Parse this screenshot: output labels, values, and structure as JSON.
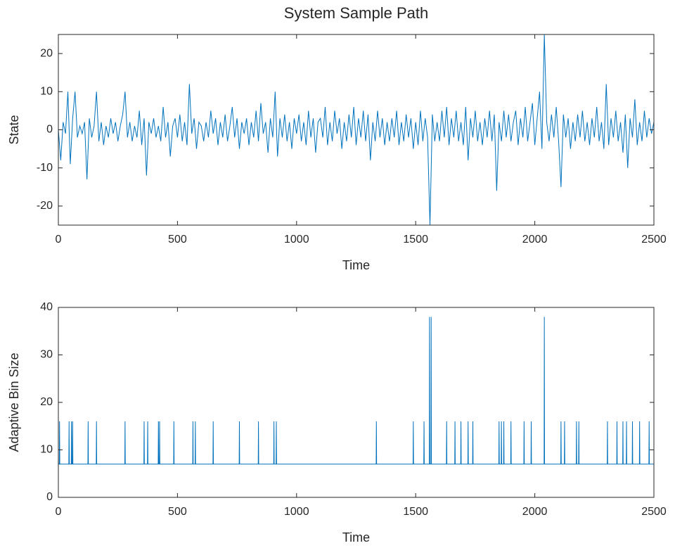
{
  "chart_data": [
    {
      "type": "line",
      "title": "System Sample Path",
      "xlabel": "Time",
      "ylabel": "State",
      "color": "#0072BD",
      "xlim": [
        0,
        2500
      ],
      "xticks": [
        0,
        500,
        1000,
        1500,
        2000,
        2500
      ],
      "ylim": [
        -25,
        25
      ],
      "yticks": [
        -20,
        -10,
        0,
        10,
        20
      ],
      "grid": false,
      "x": [
        0,
        10,
        20,
        30,
        40,
        50,
        60,
        70,
        80,
        90,
        100,
        110,
        120,
        130,
        140,
        150,
        160,
        170,
        180,
        190,
        200,
        210,
        220,
        230,
        240,
        250,
        260,
        270,
        280,
        290,
        300,
        310,
        320,
        330,
        340,
        350,
        360,
        370,
        380,
        390,
        400,
        410,
        420,
        430,
        440,
        450,
        460,
        470,
        480,
        490,
        500,
        510,
        520,
        530,
        540,
        550,
        560,
        570,
        580,
        590,
        600,
        610,
        620,
        630,
        640,
        650,
        660,
        670,
        680,
        690,
        700,
        710,
        720,
        730,
        740,
        750,
        760,
        770,
        780,
        790,
        800,
        810,
        820,
        830,
        840,
        850,
        860,
        870,
        880,
        890,
        900,
        910,
        920,
        930,
        940,
        950,
        960,
        970,
        980,
        990,
        1000,
        1010,
        1020,
        1030,
        1040,
        1050,
        1060,
        1070,
        1080,
        1090,
        1100,
        1110,
        1120,
        1130,
        1140,
        1150,
        1160,
        1170,
        1180,
        1190,
        1200,
        1210,
        1220,
        1230,
        1240,
        1250,
        1260,
        1270,
        1280,
        1290,
        1300,
        1310,
        1320,
        1330,
        1340,
        1350,
        1360,
        1370,
        1380,
        1390,
        1400,
        1410,
        1420,
        1430,
        1440,
        1450,
        1460,
        1470,
        1480,
        1490,
        1500,
        1510,
        1520,
        1530,
        1540,
        1550,
        1560,
        1570,
        1580,
        1590,
        1600,
        1610,
        1620,
        1630,
        1640,
        1650,
        1660,
        1670,
        1680,
        1690,
        1700,
        1710,
        1720,
        1730,
        1740,
        1750,
        1760,
        1770,
        1780,
        1790,
        1800,
        1810,
        1820,
        1830,
        1840,
        1850,
        1860,
        1870,
        1880,
        1890,
        1900,
        1910,
        1920,
        1930,
        1940,
        1950,
        1960,
        1970,
        1980,
        1990,
        2000,
        2010,
        2020,
        2030,
        2040,
        2050,
        2060,
        2070,
        2080,
        2090,
        2100,
        2110,
        2120,
        2130,
        2140,
        2150,
        2160,
        2170,
        2180,
        2190,
        2200,
        2210,
        2220,
        2230,
        2240,
        2250,
        2260,
        2270,
        2280,
        2290,
        2300,
        2310,
        2320,
        2330,
        2340,
        2350,
        2360,
        2370,
        2380,
        2390,
        2400,
        2410,
        2420,
        2430,
        2440,
        2450,
        2460,
        2470,
        2480,
        2490,
        2500
      ],
      "values": [
        0,
        -8,
        2,
        -1,
        10,
        -9,
        3,
        10,
        -2,
        1,
        -1,
        2,
        -13,
        3,
        -2,
        1,
        10,
        -3,
        2,
        -4,
        1,
        -2,
        3,
        -1,
        2,
        -3,
        1,
        4,
        10,
        -2,
        2,
        -3,
        1,
        -2,
        5,
        -4,
        3,
        -12,
        2,
        -1,
        3,
        -2,
        1,
        -3,
        6,
        -2,
        2,
        -7,
        1,
        3,
        -2,
        4,
        -3,
        2,
        -4,
        12,
        -1,
        3,
        -5,
        2,
        1,
        -3,
        2,
        -2,
        5,
        -1,
        3,
        -4,
        2,
        -2,
        4,
        -3,
        1,
        6,
        -2,
        3,
        -5,
        2,
        -1,
        3,
        -4,
        2,
        -2,
        5,
        -3,
        7,
        -1,
        2,
        -6,
        3,
        -2,
        10,
        -7,
        3,
        -2,
        4,
        -3,
        2,
        -5,
        3,
        -1,
        4,
        -3,
        2,
        -4,
        5,
        -2,
        3,
        -6,
        2,
        3,
        -2,
        6,
        -4,
        2,
        -3,
        5,
        -1,
        3,
        -5,
        2,
        -3,
        4,
        -2,
        6,
        -4,
        3,
        -2,
        5,
        -3,
        4,
        -8,
        2,
        -3,
        5,
        -2,
        3,
        -4,
        2,
        -3,
        3,
        -2,
        5,
        -4,
        2,
        -3,
        4,
        -2,
        3,
        -5,
        2,
        -4,
        5,
        -3,
        3,
        -2,
        -25,
        4,
        -3,
        2,
        -3,
        5,
        -2,
        6,
        -4,
        3,
        -2,
        5,
        -3,
        2,
        -4,
        6,
        -8,
        3,
        -2,
        5,
        -3,
        2,
        -4,
        3,
        -2,
        5,
        -3,
        4,
        -16,
        2,
        -3,
        5,
        -2,
        4,
        -3,
        2,
        5,
        -4,
        3,
        -2,
        6,
        -3,
        2,
        7,
        -4,
        3,
        10,
        -5,
        25,
        2,
        -3,
        4,
        -2,
        6,
        -3,
        -15,
        4,
        -2,
        3,
        -5,
        2,
        -3,
        4,
        -2,
        5,
        -3,
        2,
        -4,
        3,
        -2,
        6,
        -3,
        2,
        -5,
        12,
        -4,
        3,
        -2,
        5,
        -3,
        2,
        -6,
        4,
        -10,
        3,
        -2,
        8,
        -4,
        2,
        -3,
        5,
        -2,
        3,
        -1,
        2
      ]
    },
    {
      "type": "line",
      "xlabel": "Time",
      "ylabel": "Adaptive Bin Size",
      "color": "#0072BD",
      "xlim": [
        0,
        2500
      ],
      "xticks": [
        0,
        500,
        1000,
        1500,
        2000,
        2500
      ],
      "ylim": [
        0,
        40
      ],
      "yticks": [
        0,
        10,
        20,
        30,
        40
      ],
      "grid": false,
      "x": [
        0,
        4,
        5,
        6,
        44,
        45,
        46,
        54,
        55,
        56,
        59,
        60,
        61,
        124,
        125,
        126,
        159,
        160,
        161,
        279,
        280,
        281,
        359,
        360,
        361,
        374,
        375,
        376,
        419,
        420,
        421,
        424,
        425,
        426,
        484,
        485,
        486,
        564,
        565,
        566,
        574,
        575,
        576,
        649,
        650,
        651,
        759,
        760,
        761,
        839,
        840,
        841,
        904,
        905,
        906,
        914,
        915,
        916,
        1334,
        1335,
        1336,
        1489,
        1490,
        1491,
        1534,
        1535,
        1536,
        1557,
        1558,
        1559,
        1564,
        1565,
        1566,
        1629,
        1630,
        1631,
        1664,
        1665,
        1666,
        1689,
        1690,
        1691,
        1719,
        1720,
        1721,
        1739,
        1740,
        1741,
        1849,
        1850,
        1851,
        1859,
        1860,
        1861,
        1869,
        1870,
        1871,
        1899,
        1900,
        1901,
        1954,
        1955,
        1956,
        1984,
        1985,
        1986,
        2039,
        2040,
        2041,
        2109,
        2110,
        2111,
        2124,
        2125,
        2126,
        2174,
        2175,
        2176,
        2184,
        2185,
        2186,
        2304,
        2305,
        2306,
        2344,
        2345,
        2346,
        2369,
        2370,
        2371,
        2384,
        2385,
        2386,
        2409,
        2410,
        2411,
        2439,
        2440,
        2441,
        2479,
        2480,
        2481,
        2500
      ],
      "values": [
        7,
        7,
        16,
        7,
        7,
        16,
        7,
        7,
        16,
        7,
        7,
        16,
        7,
        7,
        16,
        7,
        7,
        16,
        7,
        7,
        16,
        7,
        7,
        16,
        7,
        7,
        16,
        7,
        7,
        16,
        7,
        7,
        16,
        7,
        7,
        16,
        7,
        7,
        16,
        7,
        7,
        16,
        7,
        7,
        16,
        7,
        7,
        16,
        7,
        7,
        16,
        7,
        7,
        16,
        7,
        7,
        16,
        7,
        7,
        16,
        7,
        7,
        16,
        7,
        7,
        16,
        7,
        7,
        38,
        7,
        7,
        38,
        7,
        7,
        16,
        7,
        7,
        16,
        7,
        7,
        16,
        7,
        7,
        16,
        7,
        7,
        16,
        7,
        7,
        16,
        7,
        7,
        16,
        7,
        7,
        16,
        7,
        7,
        16,
        7,
        7,
        16,
        7,
        7,
        16,
        7,
        7,
        38,
        7,
        7,
        16,
        7,
        7,
        16,
        7,
        7,
        16,
        7,
        7,
        16,
        7,
        7,
        16,
        7,
        7,
        16,
        7,
        7,
        16,
        7,
        7,
        16,
        7,
        7,
        16,
        7,
        7,
        16,
        7,
        7,
        16,
        7,
        7
      ]
    }
  ]
}
